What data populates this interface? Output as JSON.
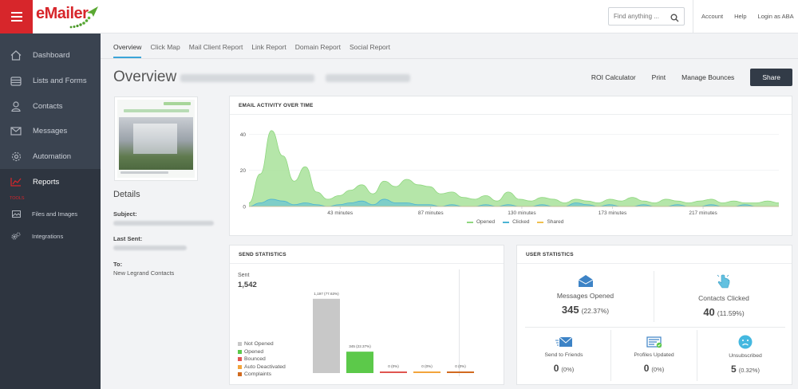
{
  "app": {
    "name": "eMailer"
  },
  "header": {
    "search_placeholder": "Find anything ...",
    "links": [
      "Account",
      "Help",
      "Login as ABA"
    ]
  },
  "sidebar": {
    "items": [
      {
        "label": "Dashboard",
        "icon": "home-icon"
      },
      {
        "label": "Lists and Forms",
        "icon": "list-icon"
      },
      {
        "label": "Contacts",
        "icon": "user-icon"
      },
      {
        "label": "Messages",
        "icon": "envelope-icon"
      },
      {
        "label": "Automation",
        "icon": "gear-icon"
      },
      {
        "label": "Reports",
        "icon": "chart-icon",
        "active": true
      }
    ],
    "section_label": "TOOLS",
    "sub_items": [
      {
        "label": "Files and Images",
        "icon": "image-icon"
      },
      {
        "label": "Integrations",
        "icon": "cogs-icon"
      }
    ]
  },
  "tabs": [
    "Overview",
    "Click Map",
    "Mail Client Report",
    "Link Report",
    "Domain Report",
    "Social Report"
  ],
  "page": {
    "title": "Overview",
    "actions": [
      "ROI Calculator",
      "Print",
      "Manage Bounces"
    ],
    "share_label": "Share"
  },
  "details": {
    "heading": "Details",
    "subject_label": "Subject:",
    "last_sent_label": "Last Sent:",
    "to_label": "To:",
    "to_value": "New Legrand Contacts"
  },
  "activity": {
    "title": "EMAIL ACTIVITY OVER TIME",
    "legend": [
      {
        "name": "Opened",
        "color": "#8fd77f"
      },
      {
        "name": "Clicked",
        "color": "#4bb4d4"
      },
      {
        "name": "Shared",
        "color": "#f0c04f"
      }
    ]
  },
  "send_stats": {
    "title": "SEND STATISTICS",
    "sent_label": "Sent",
    "sent_value": "1,542",
    "legend": [
      {
        "name": "Not Opened",
        "color": "#c8c8c8"
      },
      {
        "name": "Opened",
        "color": "#5cc94a"
      },
      {
        "name": "Bounced",
        "color": "#e0554f"
      },
      {
        "name": "Auto Deactivated",
        "color": "#f3a43b"
      },
      {
        "name": "Complaints",
        "color": "#d16a1f"
      }
    ]
  },
  "user_stats": {
    "title": "USER STATISTICS",
    "messages_opened": {
      "label": "Messages Opened",
      "value": "345",
      "percent": "(22.37%)"
    },
    "contacts_clicked": {
      "label": "Contacts Clicked",
      "value": "40",
      "percent": "(11.59%)"
    },
    "send_to_friends": {
      "label": "Send to Friends",
      "value": "0",
      "percent": "(0%)"
    },
    "profiles_updated": {
      "label": "Profiles Updated",
      "value": "0",
      "percent": "(0%)"
    },
    "unsubscribed": {
      "label": "Unsubscribed",
      "value": "5",
      "percent": "(0.32%)"
    }
  },
  "chart_data": [
    {
      "type": "area",
      "title": "EMAIL ACTIVITY OVER TIME",
      "xlabel": "",
      "ylabel": "",
      "ylim": [
        0,
        45
      ],
      "yticks": [
        0,
        20,
        40
      ],
      "xticks": [
        "43 minutes",
        "87 minutes",
        "130 minutes",
        "173 minutes",
        "217 minutes"
      ],
      "series": [
        {
          "name": "Opened",
          "values": [
            2,
            18,
            42,
            28,
            14,
            22,
            8,
            4,
            6,
            9,
            12,
            7,
            14,
            11,
            15,
            12,
            11,
            7,
            8,
            5,
            4,
            6,
            3,
            8,
            4,
            3,
            5,
            4,
            2,
            4,
            3,
            2,
            4,
            3,
            5,
            3,
            2,
            4,
            3,
            2,
            3,
            4,
            2,
            3,
            2,
            2,
            3,
            2
          ]
        },
        {
          "name": "Clicked",
          "values": [
            0,
            2,
            4,
            3,
            1,
            2,
            1,
            0,
            1,
            2,
            3,
            1,
            4,
            2,
            2,
            1,
            1,
            0,
            1,
            0,
            0,
            1,
            0,
            1,
            0,
            0,
            1,
            0,
            0,
            2,
            1,
            0,
            1,
            0,
            0,
            1,
            0,
            0,
            1,
            0,
            0,
            1,
            0,
            0,
            1,
            0,
            0,
            0
          ]
        },
        {
          "name": "Shared",
          "values": [
            0,
            0,
            0,
            0,
            0,
            0,
            0,
            0,
            0,
            0,
            0,
            0,
            0,
            0,
            0,
            0,
            0,
            0,
            0,
            0,
            0,
            0,
            0,
            0,
            0,
            0,
            0,
            0,
            0,
            0,
            0,
            0,
            0,
            0,
            0,
            0,
            0,
            0,
            0,
            0,
            0,
            0,
            0,
            0,
            0,
            0,
            0,
            0
          ]
        }
      ]
    },
    {
      "type": "bar",
      "title": "",
      "categories": [
        "Not Opened",
        "Opened",
        "Bounced",
        "Auto Deactivated",
        "Complaints"
      ],
      "values": [
        1197,
        345,
        0,
        0,
        0
      ],
      "labels": [
        "1,197 (77.63%)",
        "345 (22.37%)",
        "0 (0%)",
        "0 (0%)",
        "0 (0%)"
      ],
      "colors": [
        "#c8c8c8",
        "#5cc94a",
        "#e0554f",
        "#f3a43b",
        "#d16a1f"
      ],
      "ylim": [
        0,
        1542
      ]
    }
  ]
}
